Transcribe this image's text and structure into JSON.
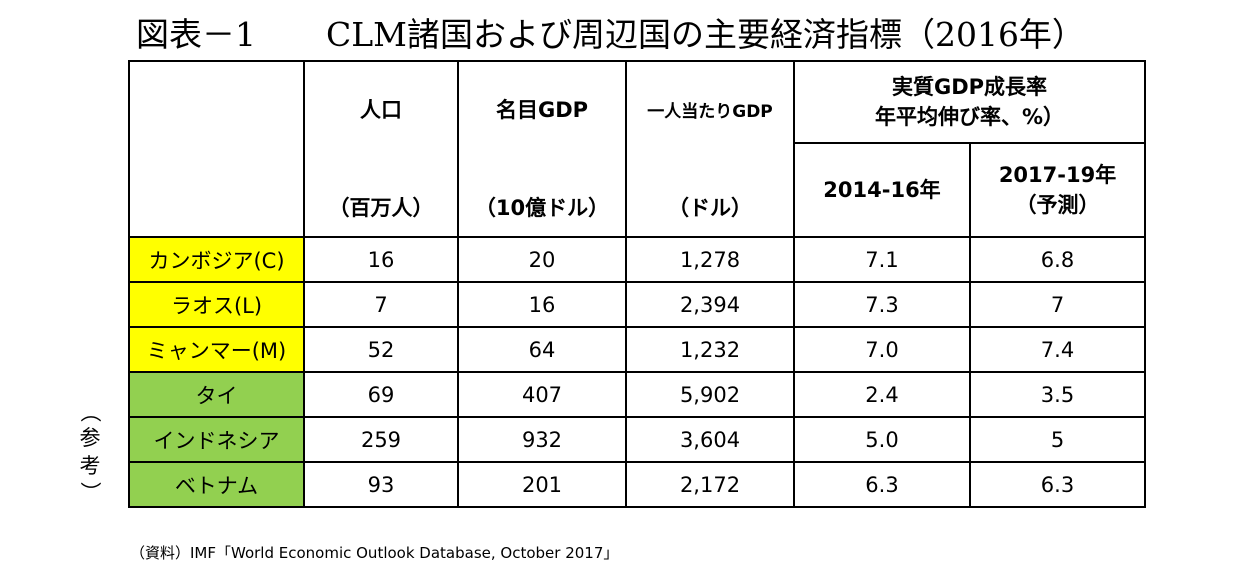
{
  "title": {
    "label": "図表－1",
    "main": "CLM諸国および周辺国の主要経済指標（2016年）"
  },
  "headers": {
    "population": {
      "name": "人口",
      "unit": "（百万人）"
    },
    "nominal_gdp": {
      "name": "名目GDP",
      "unit": "（10億ドル）"
    },
    "gdp_per_capita": {
      "name": "一人当たりGDP",
      "unit": "（ドル）"
    },
    "real_growth": {
      "line1": "実質GDP成長率",
      "line2": "年平均伸び率、%）"
    },
    "period1": "2014-16年",
    "period2_line1": "2017-19年",
    "period2_line2": "（予測）"
  },
  "rows": [
    {
      "name": "カンボジア(C)",
      "group": "clm",
      "population": "16",
      "nominal_gdp": "20",
      "gdp_per_capita": "1,278",
      "growth_2014_16": "7.1",
      "growth_2017_19": "6.8"
    },
    {
      "name": "ラオス(L)",
      "group": "clm",
      "population": "7",
      "nominal_gdp": "16",
      "gdp_per_capita": "2,394",
      "growth_2014_16": "7.3",
      "growth_2017_19": "7"
    },
    {
      "name": "ミャンマー(M)",
      "group": "clm",
      "population": "52",
      "nominal_gdp": "64",
      "gdp_per_capita": "1,232",
      "growth_2014_16": "7.0",
      "growth_2017_19": "7.4"
    },
    {
      "name": "タイ",
      "group": "ref",
      "population": "69",
      "nominal_gdp": "407",
      "gdp_per_capita": "5,902",
      "growth_2014_16": "2.4",
      "growth_2017_19": "3.5"
    },
    {
      "name": "インドネシア",
      "group": "ref",
      "population": "259",
      "nominal_gdp": "932",
      "gdp_per_capita": "3,604",
      "growth_2014_16": "5.0",
      "growth_2017_19": "5"
    },
    {
      "name": "ベトナム",
      "group": "ref",
      "population": "93",
      "nominal_gdp": "201",
      "gdp_per_capita": "2,172",
      "growth_2014_16": "6.3",
      "growth_2017_19": "6.3"
    }
  ],
  "reference_note": {
    "open": "（",
    "char1": "参",
    "char2": "考",
    "close": "）"
  },
  "source": "（資料）IMF「World Economic Outlook Database, October 2017」",
  "colors": {
    "clm_highlight": "#ffff00",
    "reference_highlight": "#92d050"
  }
}
